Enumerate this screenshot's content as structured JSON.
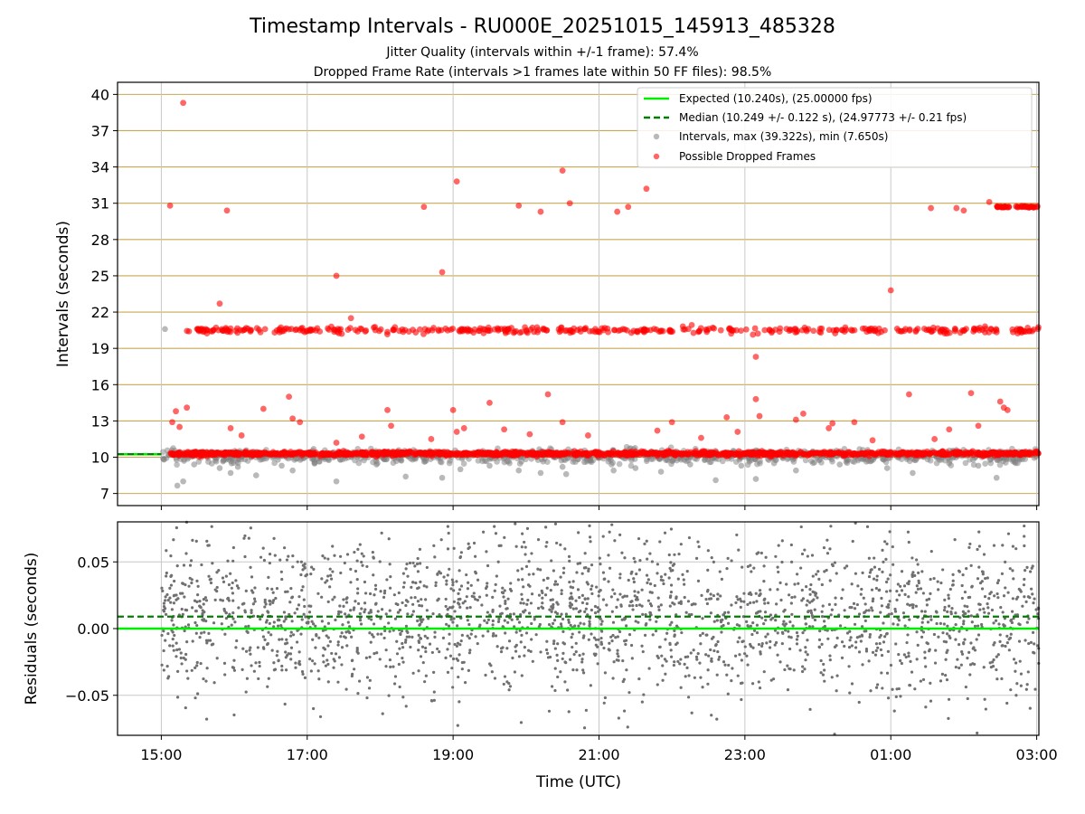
{
  "title": "Timestamp Intervals - RU000E_20251015_145913_485328",
  "subtitle_1": "Jitter Quality (intervals within +/-1 frame): 57.4%",
  "subtitle_2": "Dropped Frame Rate (intervals >1 frames late within 50 FF files): 98.5%",
  "colors": {
    "expected": "#00ee00",
    "median": "#007f00",
    "intervals": "#808080",
    "dropped": "#ff0000",
    "hgrid_top": "#c8a850",
    "grid": "#c8c8c8"
  },
  "chart_data": [
    {
      "type": "scatter",
      "ylabel": "Intervals (seconds)",
      "xlim_hours": [
        14.4,
        27.03
      ],
      "ylim": [
        6.0,
        41.0
      ],
      "yticks": [
        7,
        10,
        13,
        16,
        19,
        22,
        25,
        28,
        31,
        34,
        37,
        40
      ],
      "ytick_labels": [
        "7",
        "10",
        "13",
        "16",
        "19",
        "22",
        "25",
        "28",
        "31",
        "34",
        "37",
        "40"
      ],
      "expected_value": 10.24,
      "median_value": 10.249,
      "legend_position": "upper right",
      "legend": [
        "Expected (10.240s), (25.00000 fps)",
        "Median (10.249 +/- 0.122 s), (24.97773 +/- 0.21 fps)",
        "Intervals, max (39.322s), min (7.650s)",
        "Possible Dropped Frames"
      ],
      "series": [
        {
          "name": "Intervals",
          "description": "dense band of intervals near the expected value",
          "band_center": 10.24,
          "band_spread": 0.12,
          "outliers_hours": [
            15.05,
            15.22,
            15.3,
            15.45,
            15.8,
            15.95,
            16.05,
            16.3,
            16.65,
            16.8,
            17.1,
            17.4,
            17.95,
            18.35,
            18.85,
            19.1,
            19.5,
            19.9,
            20.2,
            20.5,
            20.55,
            20.8,
            21.2,
            21.5,
            21.85,
            22.25,
            22.6,
            22.95,
            23.15,
            23.4,
            23.7,
            24.3,
            24.95,
            25.3,
            25.8,
            26.2,
            26.45,
            26.7
          ],
          "outliers_values": [
            20.6,
            7.65,
            8.0,
            9.4,
            9.1,
            8.7,
            9.2,
            8.5,
            9.3,
            8.9,
            9.6,
            8.0,
            9.4,
            8.4,
            8.3,
            9.0,
            9.3,
            8.9,
            8.7,
            9.2,
            8.6,
            9.6,
            8.9,
            9.1,
            8.8,
            9.4,
            8.1,
            9.3,
            8.2,
            9.5,
            8.9,
            9.4,
            9.1,
            8.7,
            9.5,
            9.3,
            8.3,
            9.6
          ]
        },
        {
          "name": "Possible Dropped Frames",
          "band_10_center": 10.3,
          "band_20_center": 20.5,
          "band_30_range_hours": [
            26.45,
            27.03
          ],
          "band_30_value": 30.7,
          "sporadic_hours": [
            15.12,
            15.3,
            15.15,
            15.2,
            15.25,
            15.35,
            15.8,
            15.9,
            15.95,
            16.1,
            16.4,
            16.75,
            16.8,
            16.9,
            17.4,
            17.4,
            17.6,
            17.75,
            18.1,
            18.15,
            18.6,
            18.7,
            18.85,
            19.0,
            19.05,
            19.05,
            19.15,
            19.5,
            19.7,
            19.9,
            20.05,
            20.2,
            20.3,
            20.5,
            20.5,
            20.6,
            20.85,
            21.25,
            21.4,
            21.65,
            21.8,
            22.0,
            22.4,
            22.75,
            22.9,
            23.15,
            23.15,
            23.2,
            23.7,
            23.8,
            24.15,
            24.2,
            24.5,
            24.75,
            25.0,
            25.25,
            25.55,
            25.6,
            25.8,
            25.9,
            26.0,
            26.1,
            26.2,
            26.35,
            26.5,
            26.55,
            26.6
          ],
          "sporadic_values": [
            30.8,
            39.3,
            12.9,
            13.8,
            12.5,
            14.1,
            22.7,
            30.4,
            12.4,
            11.8,
            14.0,
            15.0,
            13.2,
            12.9,
            25.0,
            11.2,
            21.5,
            11.7,
            13.9,
            12.6,
            30.7,
            11.5,
            25.3,
            13.9,
            12.1,
            32.8,
            12.4,
            14.5,
            12.3,
            30.8,
            11.9,
            30.3,
            15.2,
            12.9,
            33.7,
            31.0,
            11.8,
            30.3,
            30.7,
            32.2,
            12.2,
            12.9,
            11.6,
            13.3,
            12.1,
            18.3,
            14.8,
            13.4,
            13.1,
            13.6,
            12.4,
            12.8,
            12.9,
            11.4,
            23.8,
            15.2,
            30.6,
            11.5,
            12.3,
            30.6,
            30.4,
            15.3,
            12.6,
            31.1,
            14.6,
            14.1,
            13.9
          ]
        }
      ]
    },
    {
      "type": "scatter",
      "ylabel": "Residuals (seconds)",
      "xlabel": "Time (UTC)",
      "xlim_hours": [
        14.4,
        27.03
      ],
      "ylim": [
        -0.08,
        0.08
      ],
      "yticks": [
        -0.05,
        0.0,
        0.05
      ],
      "ytick_labels": [
        "−0.05",
        "0.00",
        "0.05"
      ],
      "xticks_hours": [
        15,
        17,
        19,
        21,
        23,
        25,
        27
      ],
      "xtick_labels": [
        "15:00",
        "17:00",
        "19:00",
        "21:00",
        "23:00",
        "01:00",
        "03:00"
      ],
      "expected_residual": 0.0,
      "median_residual": 0.009,
      "residual_spread": 0.03,
      "data_range_hours": [
        15.0,
        27.03
      ]
    }
  ]
}
